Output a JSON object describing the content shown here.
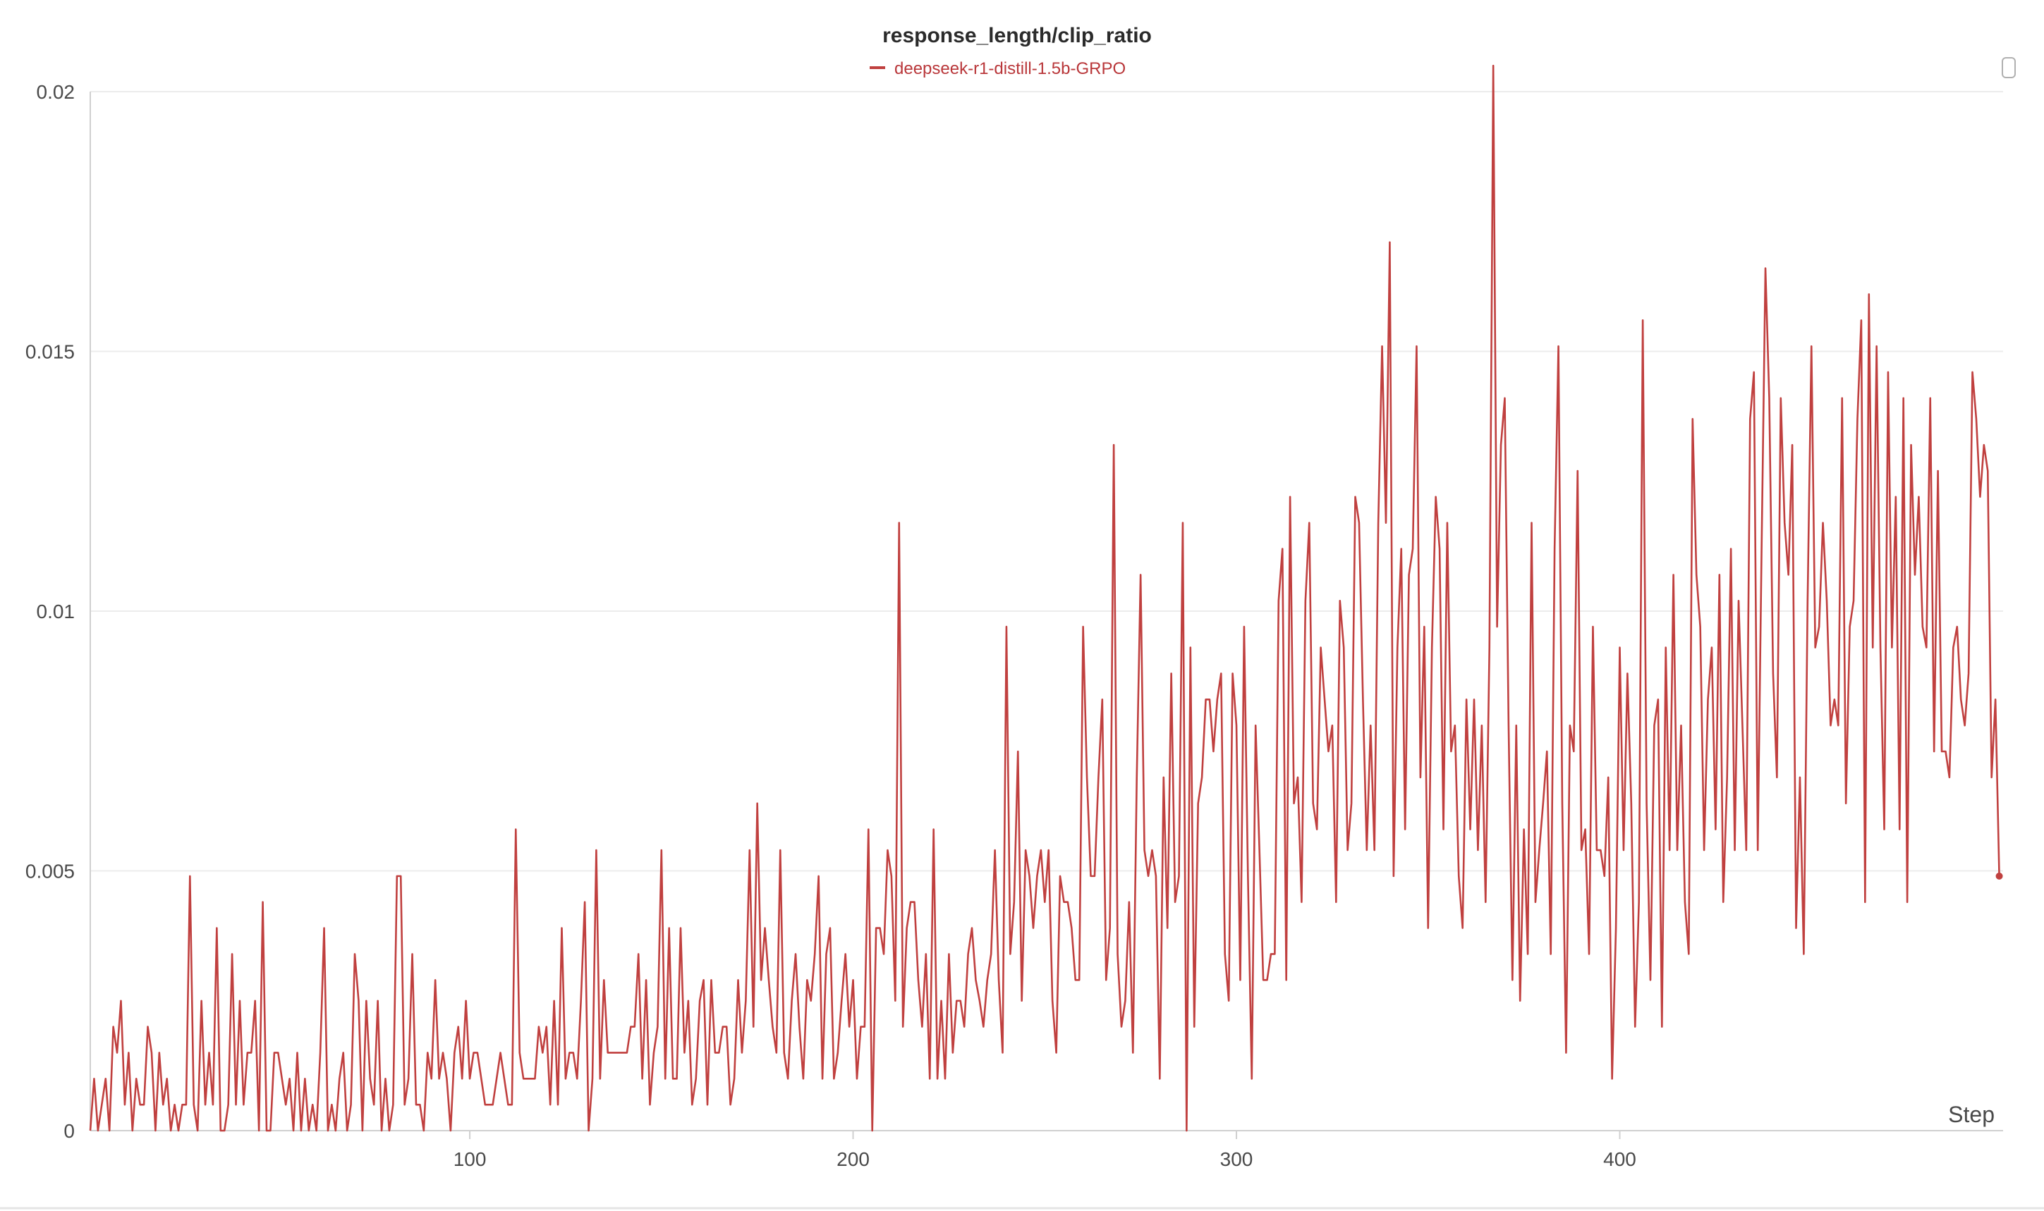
{
  "colors": {
    "series": "#c0403f",
    "legend_text": "#b9373a"
  },
  "chart_data": {
    "type": "line",
    "title": "response_length/clip_ratio",
    "xlabel": "Step",
    "ylabel": "",
    "xlim": [
      1,
      500
    ],
    "ylim": [
      0,
      0.02
    ],
    "x_ticks": [
      100,
      200,
      300,
      400
    ],
    "x_tick_labels": [
      "100",
      "200",
      "300",
      "400"
    ],
    "y_ticks": [
      0,
      0.005,
      0.01,
      0.015,
      0.02
    ],
    "y_tick_labels": [
      "0",
      "0.005",
      "0.01",
      "0.015",
      "0.02"
    ],
    "grid": true,
    "legend_position": "top-center",
    "series": [
      {
        "name": "deepseek-r1-distill-1.5b-GRPO",
        "color": "#c0403f",
        "x_start": 1,
        "x_step": 1,
        "values": [
          0,
          0.001,
          0,
          0.0005,
          0.001,
          0,
          0.002,
          0.0015,
          0.0025,
          0.0005,
          0.0015,
          0,
          0.001,
          0.0005,
          0.0005,
          0.002,
          0.0015,
          0,
          0.0015,
          0.0005,
          0.001,
          0,
          0.0005,
          0,
          0.0005,
          0.0005,
          0.0049,
          0.0005,
          0,
          0.0025,
          0.0005,
          0.0015,
          0.0005,
          0.0039,
          0,
          0,
          0.0005,
          0.0034,
          0.0005,
          0.0025,
          0.0005,
          0.0015,
          0.0015,
          0.0025,
          0,
          0.0044,
          0,
          0,
          0.0015,
          0.0015,
          0.001,
          0.0005,
          0.001,
          0,
          0.0015,
          0,
          0.001,
          0,
          0.0005,
          0,
          0.0015,
          0.0039,
          0,
          0.0005,
          0,
          0.001,
          0.0015,
          0,
          0.0005,
          0.0034,
          0.0025,
          0,
          0.0025,
          0.001,
          0.0005,
          0.0025,
          0,
          0.001,
          0,
          0.0005,
          0.0049,
          0.0049,
          0.0005,
          0.001,
          0.0034,
          0.0005,
          0.0005,
          0,
          0.0015,
          0.001,
          0.0029,
          0.001,
          0.0015,
          0.001,
          0,
          0.0015,
          0.002,
          0.001,
          0.0025,
          0.001,
          0.0015,
          0.0015,
          0.001,
          0.0005,
          0.0005,
          0.0005,
          0.001,
          0.0015,
          0.001,
          0.0005,
          0.0005,
          0.0058,
          0.0015,
          0.001,
          0.001,
          0.001,
          0.001,
          0.002,
          0.0015,
          0.002,
          0.0005,
          0.0025,
          0.0005,
          0.0039,
          0.001,
          0.0015,
          0.0015,
          0.001,
          0.0025,
          0.0044,
          0,
          0.001,
          0.0054,
          0.001,
          0.0029,
          0.0015,
          0.0015,
          0.0015,
          0.0015,
          0.0015,
          0.0015,
          0.002,
          0.002,
          0.0034,
          0.001,
          0.0029,
          0.0005,
          0.0015,
          0.002,
          0.0054,
          0.001,
          0.0039,
          0.001,
          0.001,
          0.0039,
          0.0015,
          0.0025,
          0.0005,
          0.001,
          0.0025,
          0.0029,
          0.0005,
          0.0029,
          0.0015,
          0.0015,
          0.002,
          0.002,
          0.0005,
          0.001,
          0.0029,
          0.0015,
          0.0025,
          0.0054,
          0.002,
          0.0063,
          0.0029,
          0.0039,
          0.0029,
          0.002,
          0.0015,
          0.0054,
          0.0015,
          0.001,
          0.0025,
          0.0034,
          0.002,
          0.001,
          0.0029,
          0.0025,
          0.0034,
          0.0049,
          0.001,
          0.0034,
          0.0039,
          0.001,
          0.0015,
          0.0025,
          0.0034,
          0.002,
          0.0029,
          0.001,
          0.002,
          0.002,
          0.0058,
          0,
          0.0039,
          0.0039,
          0.0034,
          0.0054,
          0.0049,
          0.0025,
          0.0117,
          0.002,
          0.0039,
          0.0044,
          0.0044,
          0.0029,
          0.002,
          0.0034,
          0.001,
          0.0058,
          0.001,
          0.0025,
          0.001,
          0.0034,
          0.0015,
          0.0025,
          0.0025,
          0.002,
          0.0034,
          0.0039,
          0.0029,
          0.0025,
          0.002,
          0.0029,
          0.0034,
          0.0054,
          0.0029,
          0.0015,
          0.0097,
          0.0034,
          0.0044,
          0.0073,
          0.0025,
          0.0054,
          0.0049,
          0.0039,
          0.0049,
          0.0054,
          0.0044,
          0.0054,
          0.0025,
          0.0015,
          0.0049,
          0.0044,
          0.0044,
          0.0039,
          0.0029,
          0.0029,
          0.0097,
          0.0068,
          0.0049,
          0.0049,
          0.0068,
          0.0083,
          0.0029,
          0.0039,
          0.0132,
          0.0034,
          0.002,
          0.0025,
          0.0044,
          0.0015,
          0.0068,
          0.0107,
          0.0054,
          0.0049,
          0.0054,
          0.0049,
          0.001,
          0.0068,
          0.0039,
          0.0088,
          0.0044,
          0.0049,
          0.0117,
          0,
          0.0093,
          0.002,
          0.0063,
          0.0068,
          0.0083,
          0.0083,
          0.0073,
          0.0083,
          0.0088,
          0.0034,
          0.0025,
          0.0088,
          0.0078,
          0.0029,
          0.0097,
          0.0049,
          0.001,
          0.0078,
          0.0054,
          0.0029,
          0.0029,
          0.0034,
          0.0034,
          0.0102,
          0.0112,
          0.0029,
          0.0122,
          0.0063,
          0.0068,
          0.0044,
          0.0102,
          0.0117,
          0.0063,
          0.0058,
          0.0093,
          0.0083,
          0.0073,
          0.0078,
          0.0044,
          0.0102,
          0.0093,
          0.0054,
          0.0063,
          0.0122,
          0.0117,
          0.0083,
          0.0054,
          0.0078,
          0.0054,
          0.0117,
          0.0151,
          0.0117,
          0.0171,
          0.0049,
          0.0093,
          0.0112,
          0.0058,
          0.0107,
          0.0112,
          0.0151,
          0.0068,
          0.0097,
          0.0039,
          0.0093,
          0.0122,
          0.0112,
          0.0058,
          0.0117,
          0.0073,
          0.0078,
          0.0049,
          0.0039,
          0.0083,
          0.0058,
          0.0083,
          0.0054,
          0.0078,
          0.0044,
          0.0093,
          0.0205,
          0.0097,
          0.0132,
          0.0141,
          0.0078,
          0.0029,
          0.0078,
          0.0025,
          0.0058,
          0.0034,
          0.0117,
          0.0044,
          0.0054,
          0.0063,
          0.0073,
          0.0034,
          0.0112,
          0.0151,
          0.0063,
          0.0015,
          0.0078,
          0.0073,
          0.0127,
          0.0054,
          0.0058,
          0.0034,
          0.0097,
          0.0054,
          0.0054,
          0.0049,
          0.0068,
          0.001,
          0.0039,
          0.0093,
          0.0054,
          0.0088,
          0.0063,
          0.002,
          0.0044,
          0.0156,
          0.0063,
          0.0029,
          0.0078,
          0.0083,
          0.002,
          0.0093,
          0.0054,
          0.0107,
          0.0054,
          0.0078,
          0.0044,
          0.0034,
          0.0137,
          0.0107,
          0.0097,
          0.0054,
          0.0083,
          0.0093,
          0.0058,
          0.0107,
          0.0044,
          0.0068,
          0.0112,
          0.0054,
          0.0102,
          0.0078,
          0.0054,
          0.0137,
          0.0146,
          0.0054,
          0.0112,
          0.0166,
          0.0141,
          0.0088,
          0.0068,
          0.0141,
          0.0117,
          0.0107,
          0.0132,
          0.0039,
          0.0068,
          0.0034,
          0.0102,
          0.0151,
          0.0093,
          0.0097,
          0.0117,
          0.0102,
          0.0078,
          0.0083,
          0.0078,
          0.0141,
          0.0063,
          0.0097,
          0.0102,
          0.0137,
          0.0156,
          0.0044,
          0.0161,
          0.0093,
          0.0151,
          0.0093,
          0.0058,
          0.0146,
          0.0093,
          0.0122,
          0.0058,
          0.0141,
          0.0044,
          0.0132,
          0.0107,
          0.0122,
          0.0097,
          0.0093,
          0.0141,
          0.0073,
          0.0127,
          0.0073,
          0.0073,
          0.0068,
          0.0093,
          0.0097,
          0.0083,
          0.0078,
          0.0088,
          0.0146,
          0.0137,
          0.0122,
          0.0132,
          0.0127,
          0.0068,
          0.0083,
          0.0049
        ]
      }
    ]
  }
}
